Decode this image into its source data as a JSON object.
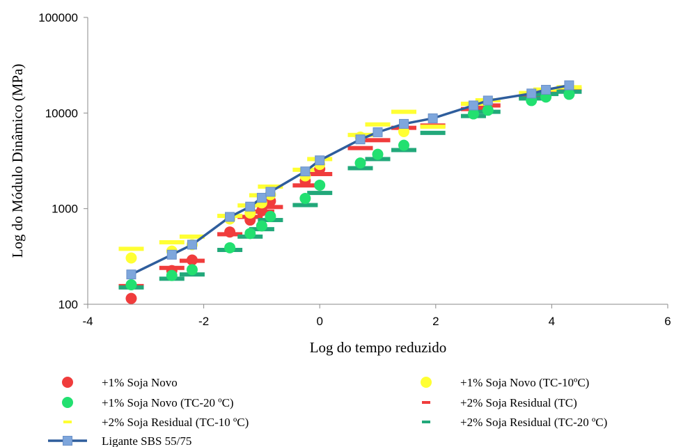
{
  "chart_data": {
    "type": "scatter",
    "title": "",
    "xlabel": "Log do tempo reduzido",
    "ylabel": "Log do Módulo Dinâmico  (MPa)",
    "xlim": [
      -4,
      6
    ],
    "ylim": [
      100,
      100000
    ],
    "yscale": "log",
    "x_ticks": [
      "-4",
      "-2",
      "0",
      "2",
      "4",
      "6"
    ],
    "y_ticks": [
      "100",
      "1000",
      "10000",
      "100000"
    ],
    "grid": false,
    "legend_position": "bottom",
    "series": [
      {
        "name": "+1% Soja Novo",
        "marker": "circle",
        "color": "#f03c3c",
        "x": [
          -3.25,
          -2.55,
          -2.2,
          -1.55,
          -1.2,
          -1.0,
          -0.85,
          -0.25,
          0.0
        ],
        "y": [
          115,
          225,
          290,
          570,
          760,
          950,
          1200,
          1950,
          2600
        ]
      },
      {
        "name": "+1% Soja Novo (TC-10ºC)",
        "marker": "circle",
        "color": "#ffff33",
        "x": [
          -3.25,
          -2.55,
          -2.2,
          -1.55,
          -1.2,
          -1.0,
          -0.85,
          -0.25,
          0.0,
          0.7,
          1.45
        ],
        "y": [
          305,
          360,
          420,
          780,
          900,
          1150,
          1400,
          2200,
          2900,
          5600,
          6400
        ]
      },
      {
        "name": "+1% Soja Novo (TC-20 ºC)",
        "marker": "circle",
        "color": "#22e070",
        "x": [
          -3.25,
          -2.55,
          -2.2,
          -1.55,
          -1.2,
          -1.0,
          -0.85,
          -0.25,
          0.0,
          0.7,
          1.0,
          1.45,
          2.65,
          2.9,
          3.65,
          3.9,
          4.3
        ],
        "y": [
          160,
          200,
          230,
          390,
          550,
          660,
          830,
          1280,
          1760,
          3000,
          3700,
          4600,
          9800,
          10700,
          13500,
          14700,
          15700
        ]
      },
      {
        "name": "+2% Soja Residual (TC)",
        "marker": "dash",
        "color": "#f03c3c",
        "x": [
          -3.25,
          -2.55,
          -2.2,
          -1.55,
          -1.2,
          -1.0,
          -0.85,
          -0.25,
          0.0,
          0.7,
          1.0,
          1.45,
          1.95,
          2.65,
          2.9,
          3.65,
          3.9,
          4.3
        ],
        "y": [
          155,
          240,
          285,
          540,
          820,
          930,
          1040,
          1750,
          2300,
          4300,
          5200,
          7000,
          7400,
          11000,
          12000,
          14800,
          16200,
          17800
        ]
      },
      {
        "name": "+2% Soja Residual (TC-10 ºC)",
        "marker": "dash",
        "color": "#ffff33",
        "x": [
          -3.25,
          -2.55,
          -2.2,
          -1.55,
          -1.2,
          -1.0,
          -0.85,
          -0.25,
          0.0,
          0.7,
          1.0,
          1.45,
          1.95,
          2.65,
          2.9,
          3.65,
          3.9,
          4.3
        ],
        "y": [
          380,
          445,
          510,
          840,
          1080,
          1380,
          1700,
          2550,
          3300,
          5900,
          7600,
          10300,
          7200,
          12500,
          13600,
          16200,
          17600,
          18600
        ]
      },
      {
        "name": "+2% Soja Residual (TC-20 ºC)",
        "marker": "dash",
        "color": "#22a87a",
        "x": [
          -3.25,
          -2.55,
          -2.2,
          -1.55,
          -1.2,
          -1.0,
          -0.85,
          -0.25,
          0.0,
          0.7,
          1.0,
          1.45,
          1.95,
          2.65,
          2.9,
          3.65,
          3.9,
          4.3
        ],
        "y": [
          150,
          185,
          205,
          370,
          510,
          610,
          760,
          1090,
          1460,
          2650,
          3300,
          4100,
          6200,
          9300,
          10300,
          14200,
          15800,
          16700
        ]
      },
      {
        "name": "Ligante SBS 55/75",
        "marker": "square-line",
        "color": "#2e5d9c",
        "marker_color": "#7ea6dc",
        "x": [
          -3.25,
          -2.55,
          -2.2,
          -1.55,
          -1.2,
          -1.0,
          -0.85,
          -0.25,
          0.0,
          0.7,
          1.0,
          1.45,
          1.95,
          2.65,
          2.9,
          3.65,
          3.9,
          4.3
        ],
        "y": [
          205,
          330,
          420,
          820,
          1050,
          1300,
          1500,
          2450,
          3200,
          5300,
          6300,
          7700,
          8800,
          12000,
          13500,
          16000,
          17500,
          19500
        ]
      }
    ]
  }
}
